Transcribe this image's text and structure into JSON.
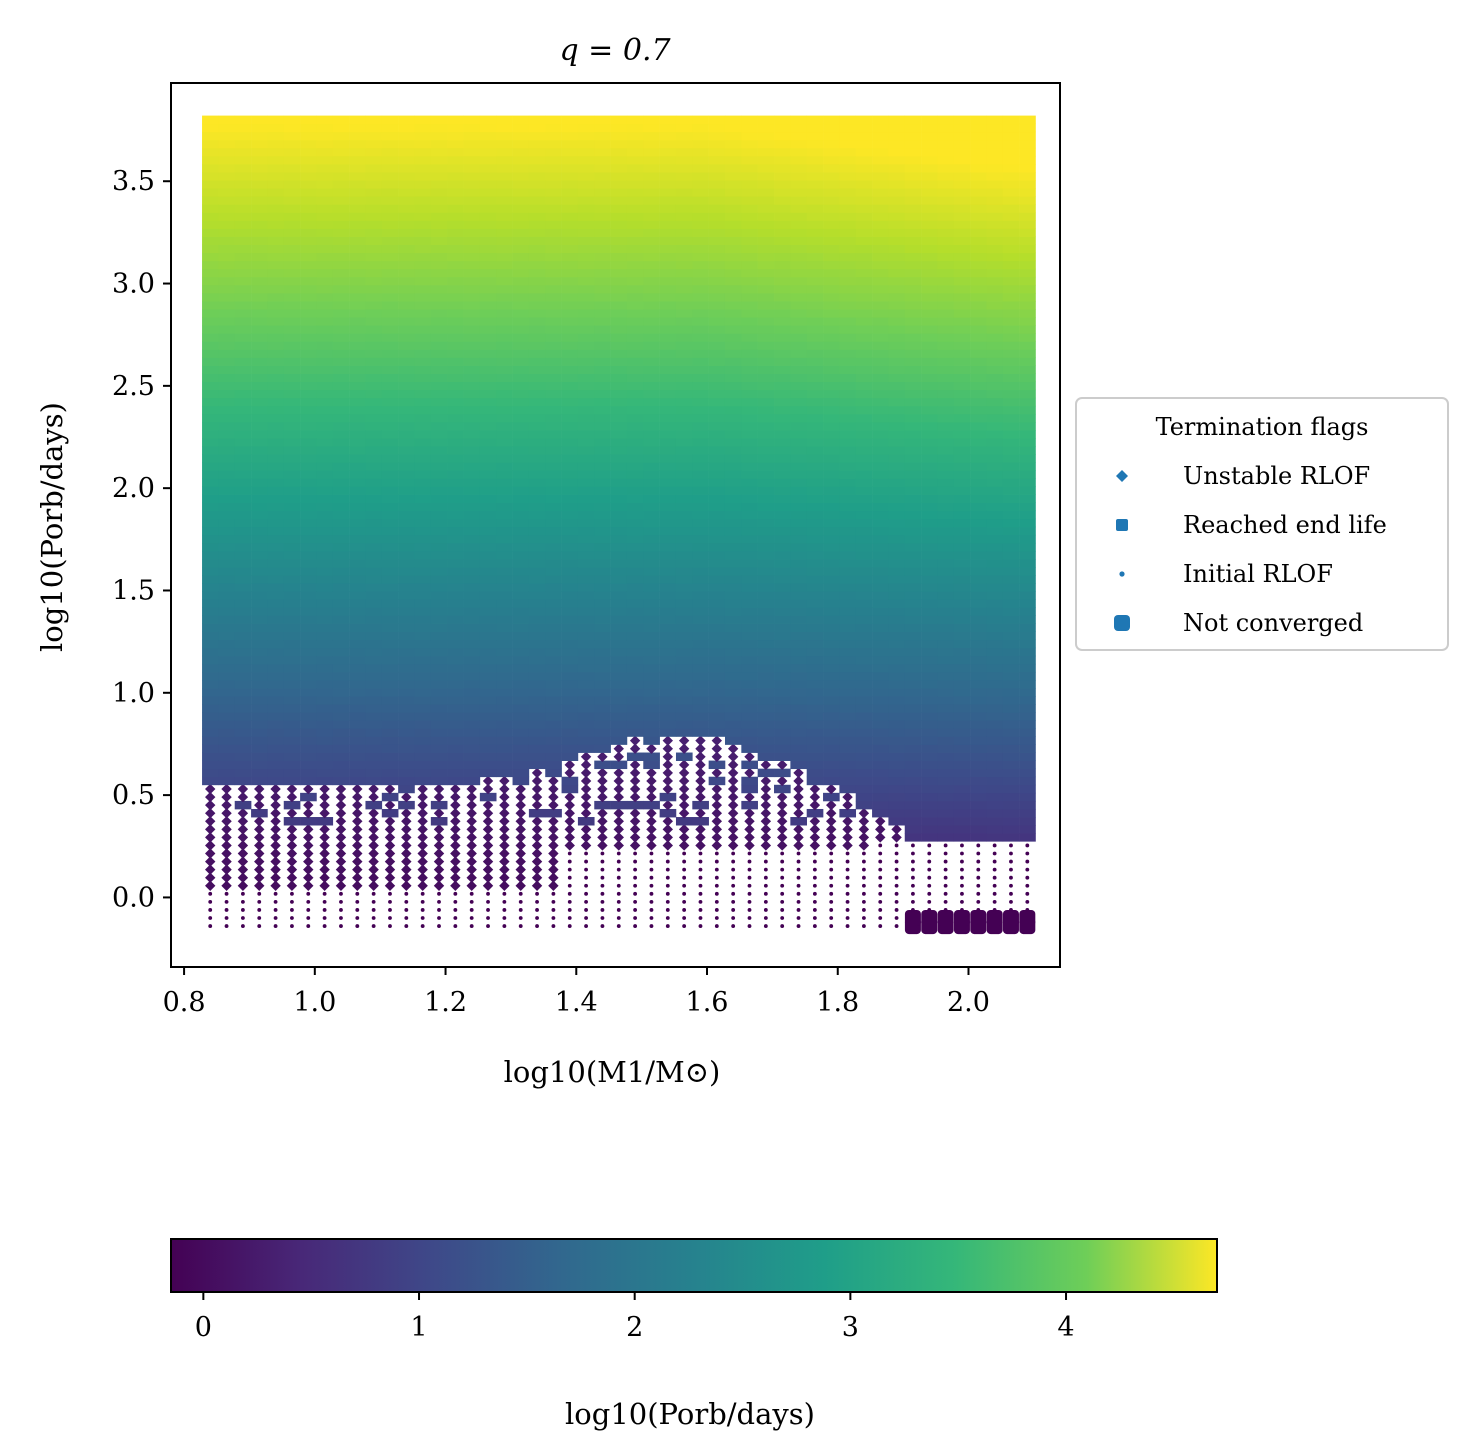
{
  "chart_data": [
    {
      "type": "scatter",
      "title": "q = 0.7",
      "xlabel": "log10(M1/M⊙)",
      "ylabel": "log10(Porb/days)",
      "xlim": [
        0.78,
        2.14
      ],
      "ylim": [
        -0.34,
        3.98
      ],
      "xticks": [
        0.8,
        1.0,
        1.2,
        1.4,
        1.6,
        1.8,
        2.0
      ],
      "xtick_labels": [
        "0.8",
        "1.0",
        "1.2",
        "1.4",
        "1.6",
        "1.8",
        "2.0"
      ],
      "yticks": [
        0.0,
        0.5,
        1.0,
        1.5,
        2.0,
        2.5,
        3.0,
        3.5
      ],
      "ytick_labels": [
        "0.0",
        "0.5",
        "1.0",
        "1.5",
        "2.0",
        "2.5",
        "3.0",
        "3.5"
      ],
      "grid": false,
      "colormap": "viridis",
      "color_variable": "final log10(Porb/days)",
      "legend": {
        "title": "Termination flags",
        "placement": "right, outside plot",
        "entries": [
          {
            "label": "Unstable RLOF",
            "marker": "diamond"
          },
          {
            "label": "Reached end life",
            "marker": "square"
          },
          {
            "label": "Initial RLOF",
            "marker": "dot"
          },
          {
            "label": "Not converged",
            "marker": "large-square"
          }
        ],
        "marker_color": "#1f77b4"
      },
      "grid_sampling": {
        "x_range": [
          0.84,
          2.09
        ],
        "x_count": 51,
        "y_range": [
          -0.14,
          3.8
        ],
        "y_count": 101
      },
      "regions": [
        {
          "flag": "Initial RLOF",
          "description": "lowest period rows",
          "x_range": [
            0.84,
            2.09
          ],
          "y_range": [
            -0.14,
            0.05
          ]
        },
        {
          "flag": "Initial RLOF",
          "x_range": [
            1.4,
            2.09
          ],
          "y_range": [
            -0.14,
            0.25
          ]
        },
        {
          "flag": "Unstable RLOF",
          "x_range": [
            0.84,
            1.9
          ],
          "y_range": [
            0.0,
            0.75
          ]
        },
        {
          "flag": "Not converged",
          "x_range": [
            1.9,
            2.09
          ],
          "y_range": [
            -0.18,
            -0.1
          ]
        },
        {
          "flag": "Reached end life",
          "x_range": [
            0.84,
            2.09
          ],
          "y_range": [
            0.3,
            3.8
          ]
        }
      ],
      "colorbar": {
        "label": "log10(Porb/days)",
        "range": [
          -0.15,
          4.7
        ],
        "ticks": [
          0,
          1,
          2,
          3,
          4
        ],
        "tick_labels": [
          "0",
          "1",
          "2",
          "3",
          "4"
        ],
        "orientation": "horizontal",
        "placement": "bottom"
      }
    }
  ]
}
